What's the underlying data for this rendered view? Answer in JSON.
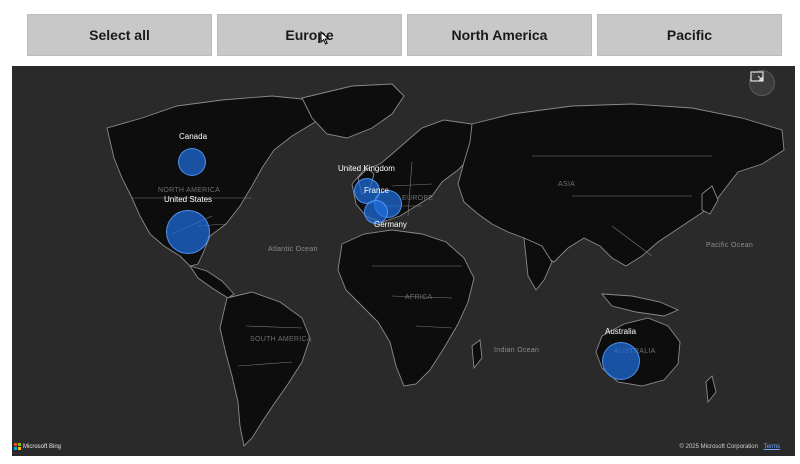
{
  "filters": [
    {
      "label": "Select all"
    },
    {
      "label": "Europe"
    },
    {
      "label": "North America"
    },
    {
      "label": "Pacific"
    }
  ],
  "map": {
    "ocean_labels": [
      "Atlantic Ocean",
      "Pacific Ocean",
      "Indian Ocean"
    ],
    "region_labels": [
      "NORTH AMERICA",
      "SOUTH AMERICA",
      "AFRICA",
      "EUROPE",
      "ASIA",
      "AUSTRALIA"
    ],
    "countries": [
      {
        "name": "Canada"
      },
      {
        "name": "United States"
      },
      {
        "name": "United Kingdom"
      },
      {
        "name": "France"
      },
      {
        "name": "Germany"
      },
      {
        "name": "Australia"
      }
    ],
    "bubble_color": "#1e6edc",
    "focus_mode_icon": "focus-mode-icon"
  },
  "footer": {
    "brand": "Microsoft Bing",
    "copyright": "© 2025 Microsoft Corporation",
    "terms": "Terms"
  }
}
